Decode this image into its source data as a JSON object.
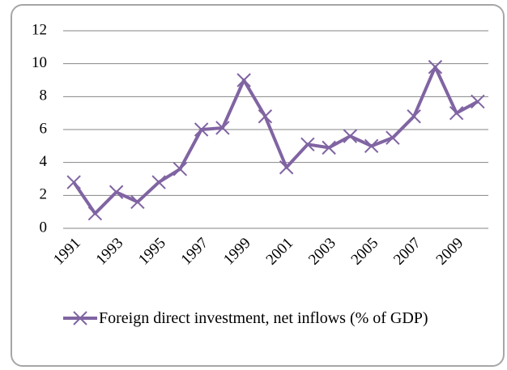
{
  "chart_data": {
    "type": "line",
    "categories": [
      "1991",
      null,
      "1993",
      null,
      "1995",
      null,
      "1997",
      null,
      "1999",
      null,
      "2001",
      null,
      "2003",
      null,
      "2005",
      null,
      "2007",
      null,
      "2009",
      null
    ],
    "series": [
      {
        "name": "Foreign direct investment, net inflows (% of GDP)",
        "color": "#8064a2",
        "values": [
          2.8,
          0.9,
          2.2,
          1.6,
          2.8,
          3.6,
          6.0,
          6.1,
          9.0,
          6.8,
          3.7,
          5.1,
          4.9,
          5.6,
          5.0,
          5.5,
          6.8,
          9.8,
          7.0,
          7.7
        ]
      }
    ],
    "ylim": [
      0,
      12
    ],
    "yticks": [
      0,
      2,
      4,
      6,
      8,
      10,
      12
    ],
    "grid": true,
    "legend": "bottom"
  }
}
